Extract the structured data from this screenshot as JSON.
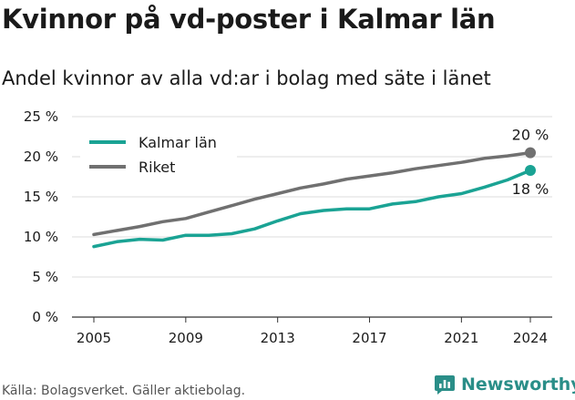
{
  "header": {
    "title": "Kvinnor på vd-poster i Kalmar län",
    "subtitle": "Andel kvinnor av alla vd:ar i bolag med säte i länet"
  },
  "footer": {
    "source": "Källa: Bolagsverket. Gäller aktiebolag.",
    "brand": "Newsworthy"
  },
  "colors": {
    "kalmar": "#1aa394",
    "riket": "#707070",
    "grid": "#dddddd",
    "brand": "#2a8e88"
  },
  "chart_data": {
    "type": "line",
    "x": [
      2005,
      2006,
      2007,
      2008,
      2009,
      2010,
      2011,
      2012,
      2013,
      2014,
      2015,
      2016,
      2017,
      2018,
      2019,
      2020,
      2021,
      2022,
      2023,
      2024
    ],
    "series": [
      {
        "name": "Kalmar län",
        "values": [
          8.8,
          9.4,
          9.7,
          9.6,
          10.2,
          10.2,
          10.4,
          11.0,
          12.0,
          12.9,
          13.3,
          13.5,
          13.5,
          14.1,
          14.4,
          15.0,
          15.4,
          16.2,
          17.1,
          18.3
        ]
      },
      {
        "name": "Riket",
        "values": [
          10.3,
          10.8,
          11.3,
          11.9,
          12.3,
          13.1,
          13.9,
          14.7,
          15.4,
          16.1,
          16.6,
          17.2,
          17.6,
          18.0,
          18.5,
          18.9,
          19.3,
          19.8,
          20.1,
          20.5
        ]
      }
    ],
    "end_labels": [
      "18 %",
      "20 %"
    ],
    "y_ticks": [
      "0 %",
      "5 %",
      "10 %",
      "15 %",
      "20 %",
      "25 %"
    ],
    "y_tick_values": [
      0,
      5,
      10,
      15,
      20,
      25
    ],
    "x_ticks": [
      "2005",
      "2009",
      "2013",
      "2017",
      "2021",
      "2024"
    ],
    "x_tick_values": [
      2005,
      2009,
      2013,
      2017,
      2021,
      2024
    ],
    "xlim": [
      2005,
      2024
    ],
    "ylim": [
      0,
      25
    ],
    "grid": true,
    "legend_position": "top-left"
  }
}
